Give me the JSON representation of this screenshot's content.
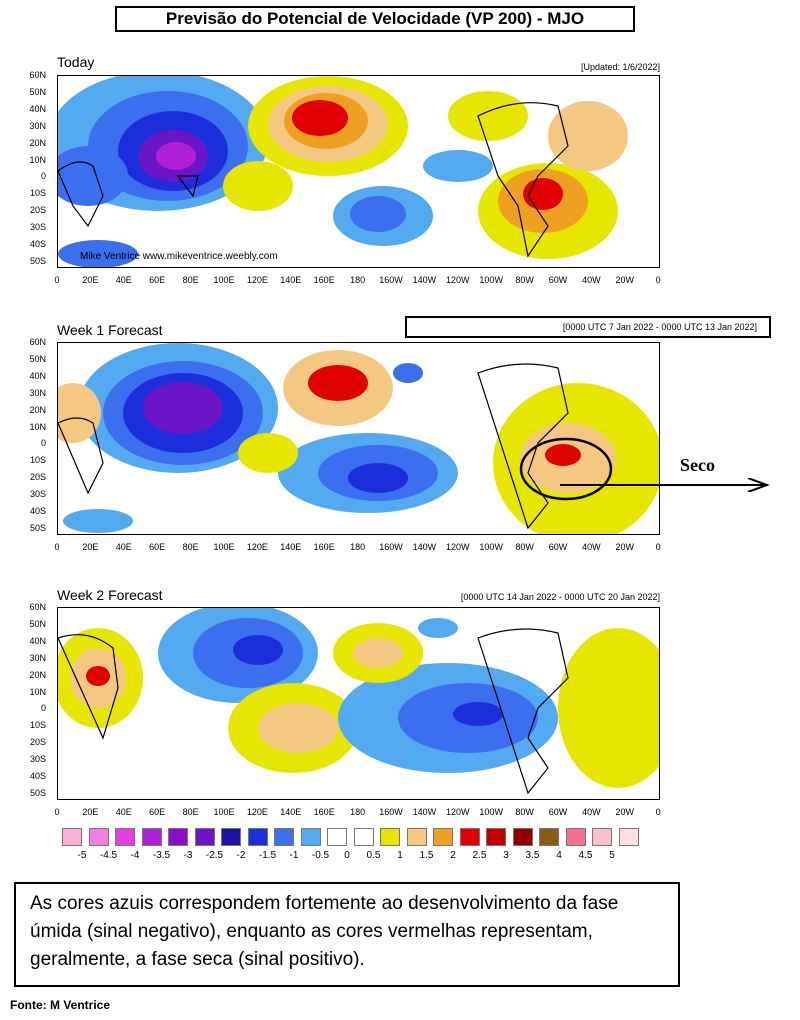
{
  "title": "Previsão do Potencial de Velocidade (VP 200) - MJO",
  "panels": [
    {
      "name": "Today",
      "subtitle": "[Updated: 1/6/2022]",
      "credit": "Mike Ventrice www.mikeventrice.weebly.com"
    },
    {
      "name": "Week 1 Forecast",
      "subtitle": "[0000 UTC 7 Jan 2022 - 0000 UTC 13 Jan 2022]"
    },
    {
      "name": "Week 2 Forecast",
      "subtitle": "[0000 UTC 14 Jan 2022 - 0000 UTC 20 Jan 2022]"
    }
  ],
  "lat_labels": [
    "60N",
    "50N",
    "40N",
    "30N",
    "20N",
    "10N",
    "0",
    "10S",
    "20S",
    "30S",
    "40S",
    "50S"
  ],
  "lon_labels": [
    "0",
    "20E",
    "40E",
    "60E",
    "80E",
    "100E",
    "120E",
    "140E",
    "160E",
    "180",
    "160W",
    "140W",
    "120W",
    "100W",
    "80W",
    "60W",
    "40W",
    "20W",
    "0"
  ],
  "annotation": "Seco",
  "legend": {
    "labels": [
      "-5",
      "-4.5",
      "-4",
      "-3.5",
      "-3",
      "-2.5",
      "-2",
      "-1.5",
      "-1",
      "-0.5",
      "0",
      "0.5",
      "1",
      "1.5",
      "2",
      "2.5",
      "3",
      "3.5",
      "4",
      "4.5",
      "5"
    ],
    "colors": [
      "#f9b0d8",
      "#f47fe0",
      "#e040e0",
      "#b020d8",
      "#8a10c8",
      "#6a14c8",
      "#1a14a0",
      "#1c2edc",
      "#3c6ef0",
      "#54aaf0",
      "#ffffff",
      "#ffffff",
      "#e6e600",
      "#f5c882",
      "#f0a020",
      "#e00000",
      "#c00000",
      "#900000",
      "#8b5a14",
      "#f07090",
      "#f8c0c8",
      "#fbe0e4"
    ]
  },
  "note": "As cores azuis correspondem fortemente ao desenvolvimento da fase úmida (sinal negativo), enquanto as cores vermelhas representam, geralmente, a fase seca (sinal positivo).",
  "source": "Fonte: M Ventrice"
}
